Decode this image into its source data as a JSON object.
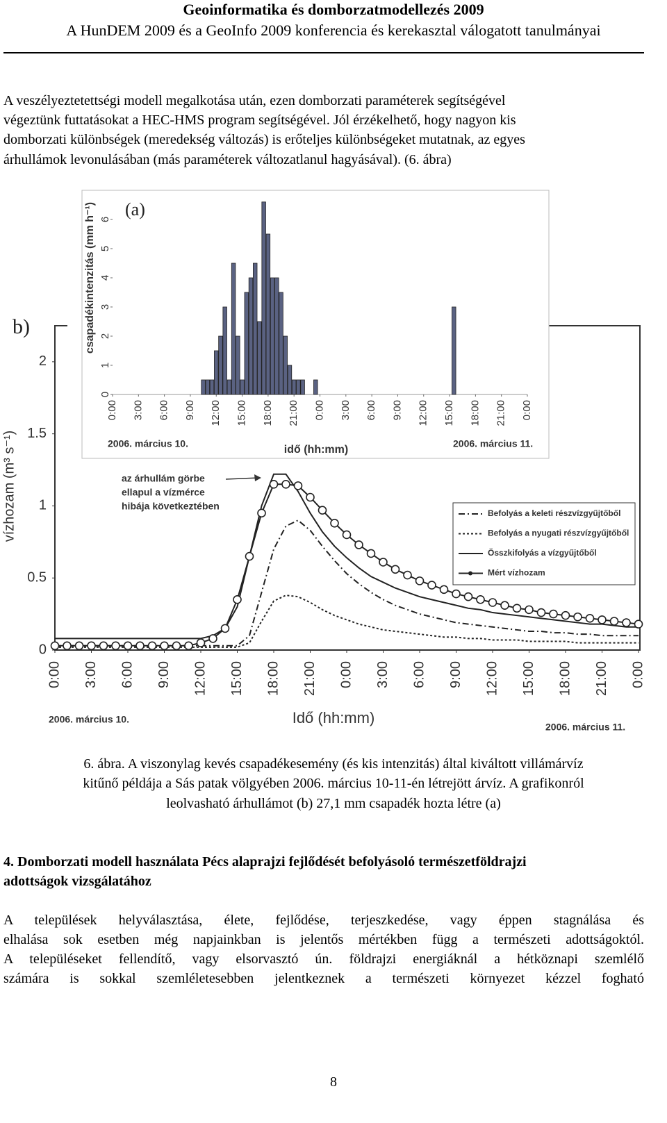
{
  "header": {
    "title": "Geoinformatika és domborzatmodellezés 2009",
    "subtitle": "A HunDEM 2009 és a GeoInfo 2009 konferencia és kerekasztal válogatott tanulmányai"
  },
  "paragraphs": [
    {
      "lines": [
        "A veszélyeztetettségi modell megalkotása után, ezen domborzati paraméterek segítségével",
        "végeztünk futtatásokat a HEC-HMS program segítségével. Jól érzékelhető, hogy nagyon kis",
        "domborzati különbségek (meredekség változás) is erőteljes különbségeket mutatnak, az egyes",
        "árhullámok levonulásában (más paraméterek változatlanul hagyásával). (6. ábra)"
      ]
    },
    {
      "lines": [
        "A települések helyválasztása, élete, fejlődése, terjeszkedése, vagy éppen stagnálása és",
        "elhalása sok esetben még napjainkban is jelentős mértékben függ a természeti adottságoktól.",
        "A településeket fellendítő, vagy elsorvasztó ún. földrajzi energiáknál a hétköznapi szemlélő",
        "számára is sokkal szemléletesebben jelentkeznek a természeti környezet kézzel fogható"
      ]
    }
  ],
  "caption": {
    "lines": [
      "6. ábra. A viszonylag kevés csapadékesemény (és kis intenzitás) által kiváltott villámárvíz",
      "kitűnő példája a Sás patak völgyében 2006. március 10-11-én létrejött árvíz. A grafikonról",
      "leolvasható árhullámot (b) 27,1 mm csapadék hozta létre (a)"
    ]
  },
  "heading": {
    "lines": [
      "4. Domborzati modell használata Pécs alaprajzi fejlődését befolyásoló természetföldrajzi",
      "adottságok vizsgálatához"
    ]
  },
  "page_number": "8",
  "chart_data": [
    {
      "type": "line",
      "panel_label": "b)",
      "xlabel": "Idő (hh:mm)",
      "ylabel": "vízhozam (m³ s⁻¹)",
      "date_labels": [
        "2006. március 10.",
        "2006. március 11."
      ],
      "annotation": [
        "az árhullám görbe",
        "ellapul a vízmérce",
        "hibája következtében"
      ],
      "xlim": [
        0,
        48
      ],
      "ylim": [
        0,
        2.25
      ],
      "grid": false,
      "legend": "right",
      "xticks": [
        {
          "value": 0,
          "label": "0:00"
        },
        {
          "value": 3,
          "label": "3:00"
        },
        {
          "value": 6,
          "label": "6:00"
        },
        {
          "value": 9,
          "label": "9:00"
        },
        {
          "value": 12,
          "label": "12:00"
        },
        {
          "value": 15,
          "label": "15:00"
        },
        {
          "value": 18,
          "label": "18:00"
        },
        {
          "value": 21,
          "label": "21:00"
        },
        {
          "value": 24,
          "label": "0:00"
        },
        {
          "value": 27,
          "label": "3:00"
        },
        {
          "value": 30,
          "label": "6:00"
        },
        {
          "value": 33,
          "label": "9:00"
        },
        {
          "value": 36,
          "label": "12:00"
        },
        {
          "value": 39,
          "label": "15:00"
        },
        {
          "value": 42,
          "label": "18:00"
        },
        {
          "value": 45,
          "label": "21:00"
        },
        {
          "value": 48,
          "label": "0:00"
        }
      ],
      "yticks": [
        0,
        0.5,
        1,
        1.5,
        2
      ],
      "x": [
        0,
        1,
        2,
        3,
        4,
        5,
        6,
        7,
        8,
        9,
        10,
        11,
        12,
        13,
        14,
        15,
        16,
        17,
        18,
        19,
        20,
        21,
        22,
        23,
        24,
        25,
        26,
        27,
        28,
        29,
        30,
        31,
        32,
        33,
        34,
        35,
        36,
        37,
        38,
        39,
        40,
        41,
        42,
        43,
        44,
        45,
        46,
        47,
        48
      ],
      "series": [
        {
          "name": "Befolyás a keleti részvízgyűjtőből",
          "color": "#222222",
          "line_style": "dash-dot",
          "values": [
            0.03,
            0.03,
            0.03,
            0.03,
            0.03,
            0.03,
            0.03,
            0.03,
            0.03,
            0.03,
            0.03,
            0.03,
            0.03,
            0.03,
            0.03,
            0.03,
            0.1,
            0.4,
            0.7,
            0.86,
            0.9,
            0.83,
            0.72,
            0.62,
            0.53,
            0.46,
            0.4,
            0.35,
            0.31,
            0.28,
            0.25,
            0.23,
            0.21,
            0.19,
            0.18,
            0.17,
            0.16,
            0.15,
            0.14,
            0.13,
            0.13,
            0.12,
            0.12,
            0.11,
            0.11,
            0.1,
            0.1,
            0.1,
            0.1
          ]
        },
        {
          "name": "Befolyás a nyugati részvízgyűjtőből",
          "color": "#222222",
          "line_style": "dotted",
          "values": [
            0.02,
            0.02,
            0.02,
            0.02,
            0.02,
            0.02,
            0.02,
            0.02,
            0.02,
            0.02,
            0.02,
            0.02,
            0.02,
            0.02,
            0.02,
            0.02,
            0.05,
            0.2,
            0.34,
            0.38,
            0.37,
            0.33,
            0.28,
            0.24,
            0.21,
            0.18,
            0.16,
            0.14,
            0.13,
            0.12,
            0.11,
            0.1,
            0.09,
            0.09,
            0.08,
            0.08,
            0.07,
            0.07,
            0.07,
            0.06,
            0.06,
            0.06,
            0.06,
            0.05,
            0.05,
            0.05,
            0.05,
            0.05,
            0.05
          ]
        },
        {
          "name": "Összkifolyás a vízgyűjtőből",
          "color": "#222222",
          "line_style": "solid",
          "values": [
            0.08,
            0.08,
            0.08,
            0.08,
            0.08,
            0.08,
            0.08,
            0.08,
            0.08,
            0.08,
            0.08,
            0.08,
            0.08,
            0.1,
            0.15,
            0.3,
            0.65,
            1.0,
            1.22,
            1.22,
            1.1,
            0.95,
            0.82,
            0.72,
            0.64,
            0.57,
            0.51,
            0.47,
            0.43,
            0.4,
            0.37,
            0.35,
            0.33,
            0.31,
            0.29,
            0.28,
            0.26,
            0.25,
            0.24,
            0.23,
            0.22,
            0.21,
            0.2,
            0.19,
            0.18,
            0.18,
            0.17,
            0.16,
            0.16
          ]
        },
        {
          "name": "Mért vízhozam",
          "color": "#222222",
          "line_style": "solid",
          "marker": "circle",
          "values": [
            0.03,
            0.03,
            0.03,
            0.03,
            0.03,
            0.03,
            0.03,
            0.03,
            0.03,
            0.03,
            0.03,
            0.03,
            0.05,
            0.08,
            0.15,
            0.35,
            0.65,
            0.95,
            1.15,
            1.15,
            1.14,
            1.06,
            0.97,
            0.88,
            0.8,
            0.73,
            0.67,
            0.61,
            0.56,
            0.52,
            0.48,
            0.45,
            0.42,
            0.39,
            0.37,
            0.35,
            0.33,
            0.31,
            0.29,
            0.28,
            0.26,
            0.25,
            0.24,
            0.23,
            0.22,
            0.21,
            0.2,
            0.19,
            0.18
          ]
        }
      ]
    },
    {
      "type": "bar",
      "panel_label": "(a)",
      "xlabel": "idő (hh:mm)",
      "ylabel": "csapadékintenzitás (mm h⁻¹)",
      "date_labels": [
        "2006. március 10.",
        "2006. március 11."
      ],
      "xlim": [
        0,
        48
      ],
      "ylim": [
        0,
        7
      ],
      "grid": false,
      "color": "#5a6282",
      "xticks": [
        {
          "value": 0,
          "label": "0:00"
        },
        {
          "value": 3,
          "label": "3:00"
        },
        {
          "value": 6,
          "label": "6:00"
        },
        {
          "value": 9,
          "label": "9:00"
        },
        {
          "value": 12,
          "label": "12:00"
        },
        {
          "value": 15,
          "label": "15:00"
        },
        {
          "value": 18,
          "label": "18:00"
        },
        {
          "value": 21,
          "label": "21:00"
        },
        {
          "value": 24,
          "label": "0:00"
        },
        {
          "value": 27,
          "label": "3:00"
        },
        {
          "value": 30,
          "label": "6:00"
        },
        {
          "value": 33,
          "label": "9:00"
        },
        {
          "value": 36,
          "label": "12:00"
        },
        {
          "value": 39,
          "label": "15:00"
        },
        {
          "value": 42,
          "label": "18:00"
        },
        {
          "value": 45,
          "label": "21:00"
        },
        {
          "value": 48,
          "label": "0:00"
        }
      ],
      "yticks": [
        0,
        1,
        2,
        3,
        4,
        5,
        6
      ],
      "x": [
        10.5,
        11,
        11.5,
        12,
        12.5,
        13,
        13.5,
        14,
        14.5,
        15,
        15.5,
        16,
        16.5,
        17,
        17.5,
        18,
        18.5,
        19,
        19.5,
        20,
        20.5,
        21,
        21.5,
        22,
        23.5,
        39.5
      ],
      "values": [
        0.5,
        0.5,
        0.5,
        1.5,
        2,
        3,
        0.5,
        4.5,
        2,
        0.5,
        3.5,
        4,
        4.5,
        2.5,
        6.6,
        5.5,
        4,
        4,
        3.5,
        2,
        1,
        0.5,
        0.5,
        0.5,
        0.5,
        3
      ]
    }
  ]
}
